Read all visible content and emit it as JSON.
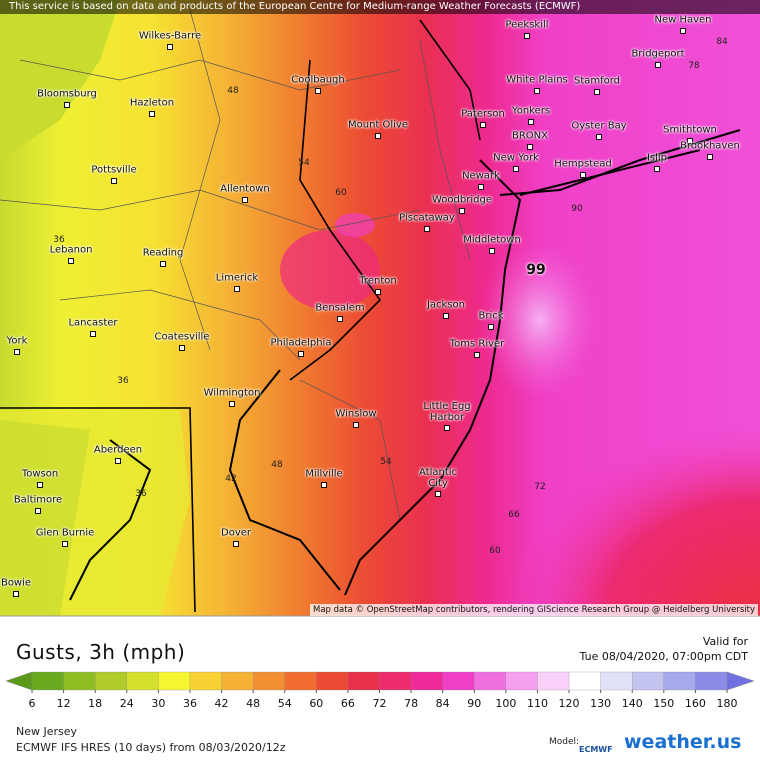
{
  "notice": "This service is based on data and products of the European Centre for Medium-range Weather Forecasts (ECMWF)",
  "attribution": "Map data © OpenStreetMap contributors, rendering GIScience Research Group @ Heidelberg University",
  "cities": [
    "Wilkes-Barre",
    "Bloomsburg",
    "Hazleton",
    "Coolbaugh",
    "Peekskill",
    "New Haven",
    "Bridgeport",
    "White Plains",
    "Stamford",
    "Mount Olive",
    "Paterson",
    "Yonkers",
    "Oyster Bay",
    "Smithtown",
    "BRONX",
    "Brookhaven",
    "New York",
    "Hempstead",
    "Islip",
    "Pottsville",
    "Newark",
    "Allentown",
    "Woodbridge",
    "Piscataway",
    "Middletown",
    "Lebanon",
    "Reading",
    "Limerick",
    "Trenton",
    "Bensalem",
    "Jackson",
    "Brick",
    "Lancaster",
    "Coatesville",
    "Philadelphia",
    "Toms River",
    "York",
    "Wilmington",
    "Winslow",
    "Little Egg Harbor",
    "Atlantic City",
    "Aberdeen",
    "Millville",
    "Towson",
    "Baltimore",
    "Glen Burnie",
    "Dover",
    "Bowie"
  ],
  "contour_labels": [
    "48",
    "54",
    "60",
    "36",
    "36",
    "36",
    "42",
    "48",
    "54",
    "90",
    "99",
    "72",
    "66",
    "60",
    "78",
    "84"
  ],
  "legend": {
    "title": "Gusts, 3h (mph)",
    "ticks": [
      6,
      12,
      18,
      24,
      30,
      36,
      42,
      48,
      54,
      60,
      66,
      72,
      78,
      84,
      90,
      100,
      110,
      120,
      130,
      140,
      150,
      160,
      180
    ],
    "colors": [
      "#5a9a1a",
      "#6aaa1e",
      "#8fbd24",
      "#b0cc2a",
      "#d4e02e",
      "#f5f532",
      "#f7d234",
      "#f5b235",
      "#f39033",
      "#f06c30",
      "#ec4a32",
      "#e8304a",
      "#ec2a6e",
      "#f02a98",
      "#f040c8",
      "#f070e0",
      "#f4a0ee",
      "#f8d0f8",
      "#ffffff",
      "#e0e0f8",
      "#c4c4f0",
      "#a8a8ec",
      "#8c8ce8",
      "#7070e0"
    ]
  },
  "valid_label": "Valid for",
  "valid_time": "Tue 08/04/2020, 07:00pm CDT",
  "region": "New Jersey",
  "model_run": "ECMWF IFS HRES (10 days)  from  08/03/2020/12z",
  "model_label": "Model:",
  "model_logo": "ECMWF",
  "brand": "weather.us"
}
